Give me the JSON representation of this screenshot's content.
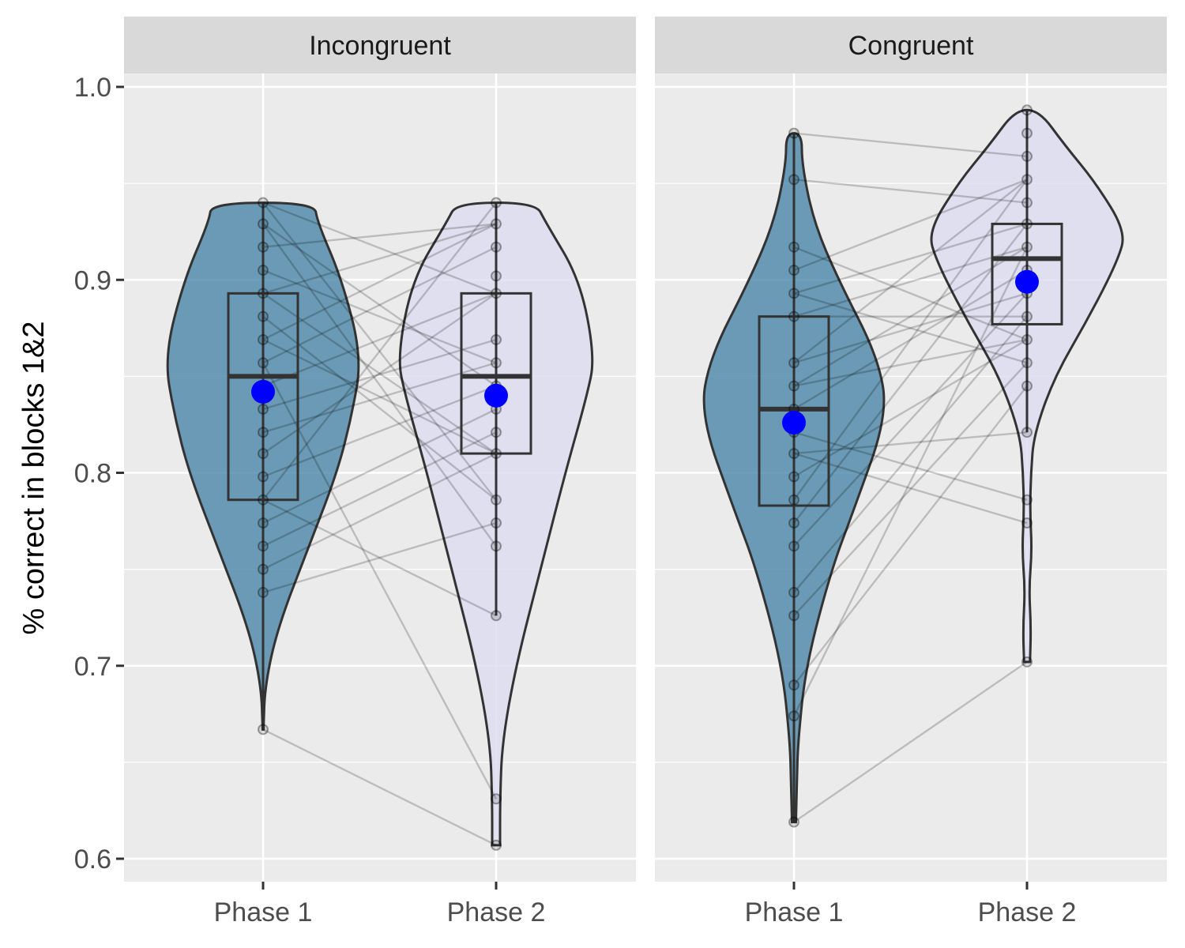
{
  "chart_data": {
    "type": "violin",
    "ylabel": "% correct in blocks 1&2",
    "xlabel": "",
    "ylim": [
      0.59,
      1.02
    ],
    "yticks": [
      "0.6",
      "0.7",
      "0.8",
      "0.9",
      "1.0"
    ],
    "ytick_values": [
      0.6,
      0.7,
      0.8,
      0.9,
      1.0
    ],
    "categories": [
      "Phase 1",
      "Phase 2"
    ],
    "colors": {
      "phase1_fill": "#4a86a8",
      "phase2_fill": "#dcdcf0",
      "mean_point": "#0000ff",
      "panel_bg": "#ebebeb",
      "strip_bg": "#d9d9d9",
      "grid": "#ffffff",
      "outline": "#333333"
    },
    "panels": [
      {
        "label": "Incongruent",
        "phase1": {
          "range": [
            0.667,
            0.94
          ],
          "violin": [
            [
              0.667,
              0.004
            ],
            [
              0.69,
              0.02
            ],
            [
              0.72,
              0.15
            ],
            [
              0.76,
              0.45
            ],
            [
              0.8,
              0.75
            ],
            [
              0.83,
              0.9
            ],
            [
              0.86,
              1.0
            ],
            [
              0.9,
              0.8
            ],
            [
              0.93,
              0.55
            ],
            [
              0.94,
              0.52
            ]
          ],
          "box": {
            "q1": 0.786,
            "median": 0.85,
            "q3": 0.893,
            "lower": 0.667,
            "upper": 0.94
          },
          "mean": 0.842,
          "points": [
            0.94,
            0.929,
            0.917,
            0.905,
            0.893,
            0.881,
            0.869,
            0.857,
            0.845,
            0.833,
            0.821,
            0.81,
            0.798,
            0.786,
            0.774,
            0.762,
            0.75,
            0.738,
            0.667
          ]
        },
        "phase2": {
          "range": [
            0.607,
            0.94
          ],
          "violin": [
            [
              0.607,
              0.04
            ],
            [
              0.63,
              0.04
            ],
            [
              0.66,
              0.06
            ],
            [
              0.7,
              0.2
            ],
            [
              0.75,
              0.45
            ],
            [
              0.8,
              0.7
            ],
            [
              0.84,
              0.92
            ],
            [
              0.86,
              1.0
            ],
            [
              0.9,
              0.85
            ],
            [
              0.93,
              0.5
            ],
            [
              0.94,
              0.4
            ]
          ],
          "box": {
            "q1": 0.81,
            "median": 0.85,
            "q3": 0.893,
            "lower": 0.726,
            "upper": 0.94
          },
          "mean": 0.84,
          "points": [
            0.94,
            0.929,
            0.917,
            0.902,
            0.893,
            0.869,
            0.857,
            0.845,
            0.833,
            0.821,
            0.81,
            0.786,
            0.774,
            0.762,
            0.726,
            0.631,
            0.607
          ]
        },
        "pairs": [
          [
            0.667,
            0.607
          ],
          [
            0.786,
            0.726
          ],
          [
            0.94,
            0.893
          ],
          [
            0.929,
            0.845
          ],
          [
            0.917,
            0.929
          ],
          [
            0.905,
            0.857
          ],
          [
            0.893,
            0.81
          ],
          [
            0.881,
            0.786
          ],
          [
            0.869,
            0.929
          ],
          [
            0.857,
            0.917
          ],
          [
            0.845,
            0.893
          ],
          [
            0.833,
            0.869
          ],
          [
            0.821,
            0.857
          ],
          [
            0.81,
            0.893
          ],
          [
            0.798,
            0.845
          ],
          [
            0.786,
            0.94
          ],
          [
            0.774,
            0.833
          ],
          [
            0.762,
            0.821
          ],
          [
            0.75,
            0.81
          ],
          [
            0.738,
            0.774
          ],
          [
            0.94,
            0.786
          ],
          [
            0.929,
            0.762
          ],
          [
            0.893,
            0.929
          ],
          [
            0.869,
            0.81
          ],
          [
            0.857,
            0.631
          ]
        ]
      },
      {
        "label": "Congruent",
        "phase1": {
          "range": [
            0.619,
            0.976
          ],
          "violin": [
            [
              0.619,
              0.02
            ],
            [
              0.64,
              0.03
            ],
            [
              0.66,
              0.04
            ],
            [
              0.7,
              0.12
            ],
            [
              0.75,
              0.38
            ],
            [
              0.78,
              0.6
            ],
            [
              0.83,
              0.95
            ],
            [
              0.86,
              0.85
            ],
            [
              0.9,
              0.45
            ],
            [
              0.93,
              0.2
            ],
            [
              0.96,
              0.08
            ],
            [
              0.976,
              0.08
            ]
          ],
          "box": {
            "q1": 0.783,
            "median": 0.833,
            "q3": 0.881,
            "lower": 0.619,
            "upper": 0.976
          },
          "mean": 0.826,
          "points": [
            0.976,
            0.952,
            0.917,
            0.905,
            0.893,
            0.881,
            0.857,
            0.845,
            0.833,
            0.821,
            0.81,
            0.798,
            0.786,
            0.774,
            0.762,
            0.738,
            0.726,
            0.69,
            0.674,
            0.619
          ]
        },
        "phase2": {
          "range": [
            0.702,
            0.988
          ],
          "violin": [
            [
              0.702,
              0.03
            ],
            [
              0.72,
              0.04
            ],
            [
              0.74,
              0.02
            ],
            [
              0.76,
              0.05
            ],
            [
              0.78,
              0.03
            ],
            [
              0.8,
              0.04
            ],
            [
              0.82,
              0.07
            ],
            [
              0.85,
              0.28
            ],
            [
              0.88,
              0.62
            ],
            [
              0.91,
              0.92
            ],
            [
              0.925,
              1.0
            ],
            [
              0.95,
              0.7
            ],
            [
              0.97,
              0.38
            ],
            [
              0.988,
              0.12
            ]
          ],
          "box": {
            "q1": 0.877,
            "median": 0.911,
            "q3": 0.929,
            "lower": 0.821,
            "upper": 0.988
          },
          "mean": 0.899,
          "points": [
            0.988,
            0.976,
            0.964,
            0.952,
            0.94,
            0.929,
            0.917,
            0.905,
            0.893,
            0.881,
            0.869,
            0.857,
            0.845,
            0.821,
            0.786,
            0.774,
            0.702
          ]
        },
        "pairs": [
          [
            0.976,
            0.964
          ],
          [
            0.952,
            0.94
          ],
          [
            0.917,
            0.869
          ],
          [
            0.905,
            0.952
          ],
          [
            0.893,
            0.929
          ],
          [
            0.881,
            0.881
          ],
          [
            0.857,
            0.893
          ],
          [
            0.845,
            0.917
          ],
          [
            0.833,
            0.905
          ],
          [
            0.821,
            0.786
          ],
          [
            0.81,
            0.774
          ],
          [
            0.798,
            0.869
          ],
          [
            0.786,
            0.952
          ],
          [
            0.774,
            0.929
          ],
          [
            0.762,
            0.893
          ],
          [
            0.738,
            0.881
          ],
          [
            0.726,
            0.857
          ],
          [
            0.69,
            0.845
          ],
          [
            0.674,
            0.917
          ],
          [
            0.619,
            0.702
          ],
          [
            0.893,
            0.857
          ],
          [
            0.857,
            0.952
          ],
          [
            0.81,
            0.821
          ],
          [
            0.881,
            0.917
          ],
          [
            0.845,
            0.869
          ]
        ]
      }
    ]
  }
}
